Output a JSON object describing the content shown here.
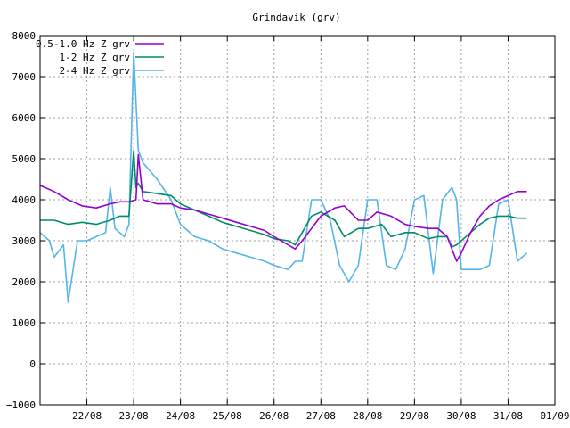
{
  "chart_data": {
    "type": "line",
    "title": "Grindavik (grv)",
    "xlabel": "",
    "ylabel": "",
    "ylim": [
      -1000,
      8000
    ],
    "xlim": [
      0,
      11
    ],
    "grid": true,
    "legend_position": "top-left",
    "x_ticks": [
      {
        "x": 1,
        "label": "22/08"
      },
      {
        "x": 2,
        "label": "23/08"
      },
      {
        "x": 3,
        "label": "24/08"
      },
      {
        "x": 4,
        "label": "25/08"
      },
      {
        "x": 5,
        "label": "26/08"
      },
      {
        "x": 6,
        "label": "27/08"
      },
      {
        "x": 7,
        "label": "28/08"
      },
      {
        "x": 8,
        "label": "29/08"
      },
      {
        "x": 9,
        "label": "30/08"
      },
      {
        "x": 10,
        "label": "31/08"
      },
      {
        "x": 11,
        "label": "01/09"
      }
    ],
    "y_ticks": [
      {
        "y": -1000,
        "label": "−1000"
      },
      {
        "y": 0,
        "label": "0"
      },
      {
        "y": 1000,
        "label": "1000"
      },
      {
        "y": 2000,
        "label": "2000"
      },
      {
        "y": 3000,
        "label": "3000"
      },
      {
        "y": 4000,
        "label": "4000"
      },
      {
        "y": 5000,
        "label": "5000"
      },
      {
        "y": 6000,
        "label": "6000"
      },
      {
        "y": 7000,
        "label": "7000"
      },
      {
        "y": 8000,
        "label": "8000"
      }
    ],
    "series": [
      {
        "name": "0.5-1.0 Hz Z grv",
        "color": "#9400d3",
        "x": [
          0.0,
          0.3,
          0.6,
          0.9,
          1.2,
          1.5,
          1.7,
          1.9,
          2.05,
          2.1,
          2.2,
          2.5,
          2.8,
          3.0,
          3.3,
          3.6,
          3.9,
          4.2,
          4.5,
          4.8,
          5.0,
          5.3,
          5.45,
          5.6,
          5.8,
          6.0,
          6.3,
          6.5,
          6.8,
          7.0,
          7.2,
          7.5,
          7.8,
          8.0,
          8.3,
          8.5,
          8.7,
          8.8,
          8.9,
          9.0,
          9.2,
          9.4,
          9.6,
          9.8,
          10.0,
          10.2,
          10.4
        ],
        "y": [
          4350,
          4200,
          4000,
          3850,
          3800,
          3900,
          3950,
          3950,
          4000,
          5100,
          4000,
          3900,
          3900,
          3800,
          3750,
          3650,
          3550,
          3450,
          3350,
          3250,
          3100,
          2900,
          2800,
          3000,
          3300,
          3600,
          3800,
          3850,
          3500,
          3500,
          3700,
          3600,
          3400,
          3350,
          3300,
          3300,
          3100,
          2800,
          2500,
          2700,
          3200,
          3600,
          3850,
          4000,
          4100,
          4200,
          4200
        ]
      },
      {
        "name": "1-2 Hz Z grv",
        "color": "#008b6a",
        "x": [
          0.0,
          0.3,
          0.6,
          0.9,
          1.2,
          1.5,
          1.7,
          1.9,
          2.0,
          2.05,
          2.1,
          2.2,
          2.5,
          2.8,
          3.0,
          3.3,
          3.6,
          3.9,
          4.2,
          4.5,
          4.8,
          5.0,
          5.3,
          5.45,
          5.6,
          5.8,
          6.0,
          6.3,
          6.5,
          6.8,
          7.0,
          7.3,
          7.5,
          7.8,
          8.0,
          8.3,
          8.5,
          8.7,
          8.8,
          8.9,
          9.0,
          9.2,
          9.4,
          9.6,
          9.8,
          10.0,
          10.2,
          10.4
        ],
        "y": [
          3500,
          3500,
          3400,
          3450,
          3400,
          3500,
          3600,
          3600,
          5200,
          4300,
          4400,
          4200,
          4150,
          4100,
          3900,
          3750,
          3600,
          3450,
          3350,
          3250,
          3150,
          3050,
          3000,
          2900,
          3200,
          3600,
          3700,
          3500,
          3100,
          3300,
          3300,
          3400,
          3100,
          3200,
          3200,
          3050,
          3100,
          3100,
          2850,
          2900,
          3000,
          3200,
          3400,
          3550,
          3600,
          3600,
          3550,
          3550
        ]
      },
      {
        "name": "2-4 Hz Z grv",
        "color": "#56b4e9",
        "x": [
          0.0,
          0.2,
          0.3,
          0.5,
          0.6,
          0.8,
          1.0,
          1.2,
          1.4,
          1.5,
          1.6,
          1.8,
          1.9,
          2.0,
          2.1,
          2.2,
          2.5,
          2.8,
          3.0,
          3.3,
          3.6,
          3.9,
          4.2,
          4.5,
          4.8,
          5.0,
          5.3,
          5.45,
          5.6,
          5.8,
          6.0,
          6.2,
          6.4,
          6.6,
          6.8,
          7.0,
          7.2,
          7.4,
          7.6,
          7.8,
          8.0,
          8.2,
          8.4,
          8.6,
          8.8,
          8.9,
          9.0,
          9.2,
          9.4,
          9.6,
          9.8,
          10.0,
          10.2,
          10.4
        ],
        "y": [
          3200,
          3000,
          2600,
          2900,
          1500,
          3000,
          3000,
          3100,
          3200,
          4300,
          3300,
          3100,
          3400,
          7600,
          5200,
          4900,
          4500,
          4000,
          3400,
          3100,
          3000,
          2800,
          2700,
          2600,
          2500,
          2400,
          2300,
          2500,
          2500,
          4000,
          4000,
          3500,
          2400,
          2000,
          2400,
          4000,
          4000,
          2400,
          2300,
          2800,
          4000,
          4100,
          2200,
          4000,
          4300,
          4000,
          2300,
          2300,
          2300,
          2400,
          3900,
          4000,
          2500,
          2700
        ]
      }
    ]
  }
}
